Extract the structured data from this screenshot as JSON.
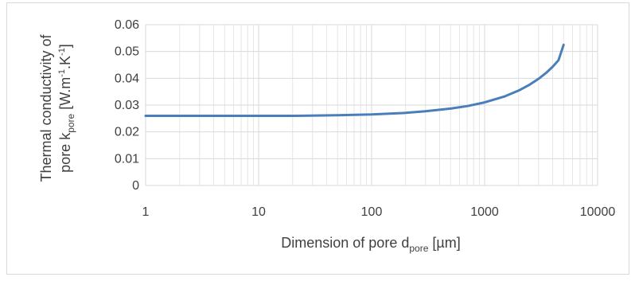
{
  "chart_data": {
    "type": "line",
    "x_scale": "log",
    "xlim": [
      1,
      10000
    ],
    "ylim": [
      0,
      0.06
    ],
    "grid": true,
    "legend": "none",
    "x_ticks": [
      "1",
      "10",
      "100",
      "1000",
      "10000"
    ],
    "y_ticks": [
      "0",
      "0.01",
      "0.02",
      "0.03",
      "0.04",
      "0.05",
      "0.06"
    ],
    "xlabel": {
      "main": "Dimension of pore d",
      "sub": "pore",
      "unit": " [µm]"
    },
    "ylabel": {
      "line1": "Thermal conductivity of",
      "line2_main": "pore k",
      "line2_sub": "pore",
      "line2_unit_a": " [W.m",
      "line2_sup1": "-1",
      "line2_unit_b": ".K",
      "line2_sup2": "-1",
      "line2_unit_c": "]"
    },
    "series": [
      {
        "color": "#4a7ebb",
        "x": [
          1,
          2,
          5,
          10,
          20,
          50,
          100,
          200,
          300,
          500,
          700,
          1000,
          1500,
          2000,
          2500,
          3000,
          3500,
          4000,
          4500,
          5000
        ],
        "y": [
          0.026,
          0.026,
          0.026,
          0.026,
          0.026,
          0.0262,
          0.0265,
          0.0271,
          0.0277,
          0.0287,
          0.0296,
          0.031,
          0.0332,
          0.0354,
          0.0376,
          0.0398,
          0.042,
          0.0443,
          0.0467,
          0.0525
        ]
      }
    ]
  }
}
